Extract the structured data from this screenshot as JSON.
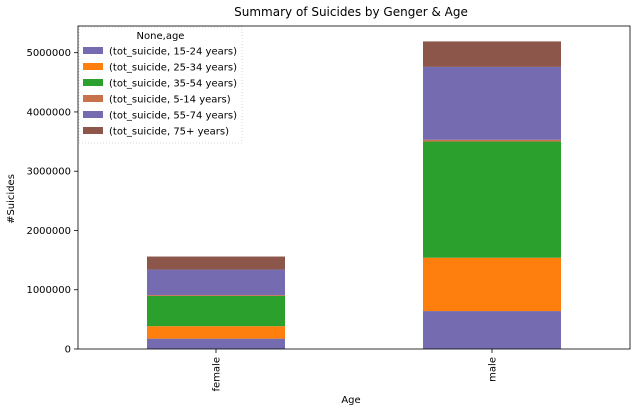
{
  "chart_data": {
    "type": "bar",
    "stacked": true,
    "title": "Summary of Suicides by Genger & Age",
    "xlabel": "Age",
    "ylabel": "#Suicides",
    "categories": [
      "female",
      "male"
    ],
    "ylim": [
      0,
      5450000
    ],
    "yticks": [
      0,
      1000000,
      2000000,
      3000000,
      4000000,
      5000000
    ],
    "ytick_labels": [
      "0",
      "1000000",
      "2000000",
      "3000000",
      "4000000",
      "5000000"
    ],
    "grid": false,
    "legend": {
      "title": "None,age",
      "position": "top-left"
    },
    "series": [
      {
        "name": "(tot_suicide, 15-24 years)",
        "color": "#756bb1",
        "values": [
          175000,
          640000
        ]
      },
      {
        "name": "(tot_suicide, 25-34 years)",
        "color": "#ff7f0e",
        "values": [
          210000,
          900000
        ]
      },
      {
        "name": "(tot_suicide, 35-54 years)",
        "color": "#2ca02c",
        "values": [
          510000,
          1960000
        ]
      },
      {
        "name": "(tot_suicide, 5-14 years)",
        "color": "#c8714a",
        "values": [
          15000,
          30000
        ]
      },
      {
        "name": "(tot_suicide, 55-74 years)",
        "color": "#756bb1",
        "values": [
          430000,
          1230000
        ]
      },
      {
        "name": "(tot_suicide, 75+ years)",
        "color": "#8c564b",
        "values": [
          220000,
          430000
        ]
      }
    ]
  }
}
